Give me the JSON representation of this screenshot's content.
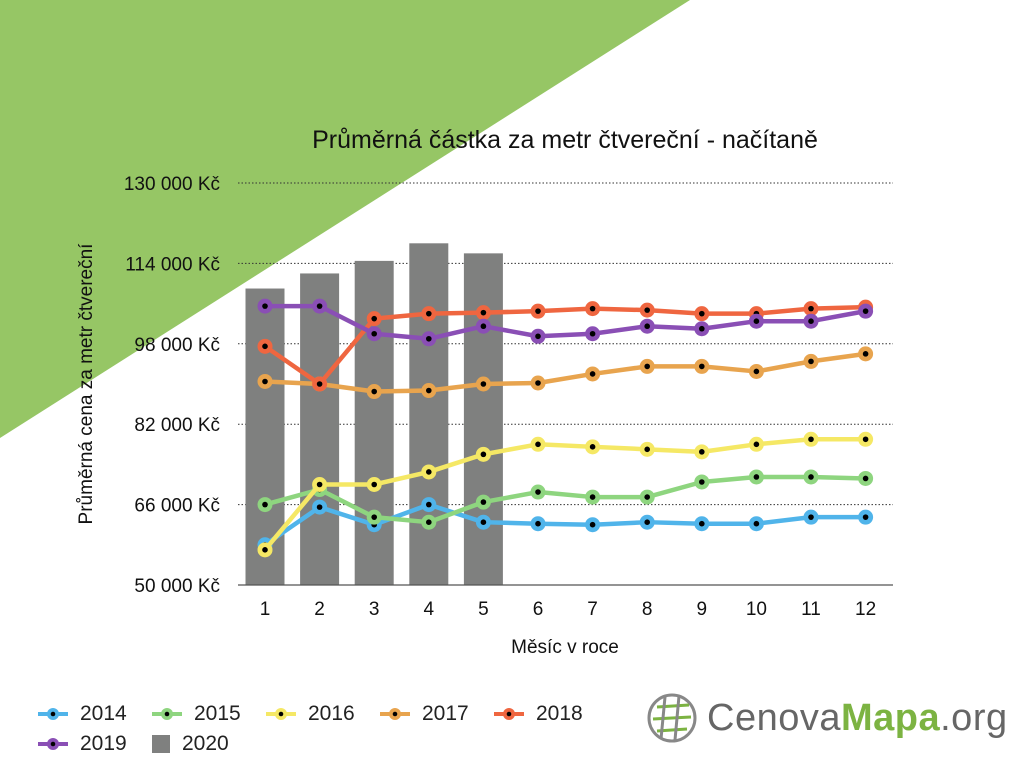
{
  "chart_data": {
    "type": "line",
    "title": "Průměrná částka za metr čtvereční - načítaně",
    "xlabel": "Měsíc v roce",
    "ylabel": "Průměrná cena za metr čtvereční",
    "x": [
      1,
      2,
      3,
      4,
      5,
      6,
      7,
      8,
      9,
      10,
      11,
      12
    ],
    "x_tick_labels": [
      "1",
      "2",
      "3",
      "4",
      "5",
      "6",
      "7",
      "8",
      "9",
      "10",
      "11",
      "12"
    ],
    "ylim": [
      50000,
      130000
    ],
    "y_tick_labels": [
      "130 000 Kč",
      "114 000 Kč",
      "98 000 Kč",
      "82 000 Kč",
      "66 000 Kč",
      "50 000 Kč"
    ],
    "grid": "horizontal dotted",
    "legend_position": "bottom",
    "bars": {
      "name": "2020",
      "color": "#7f807f",
      "values": [
        109000,
        112000,
        114500,
        118000,
        116000
      ]
    },
    "series": [
      {
        "name": "2014",
        "color": "#50b4ea",
        "values": [
          58000,
          65500,
          62000,
          66000,
          62500,
          62200,
          62000,
          62500,
          62200,
          62200,
          63500,
          63500
        ]
      },
      {
        "name": "2015",
        "color": "#8ed57f",
        "values": [
          66000,
          69000,
          63500,
          62500,
          66500,
          68500,
          67500,
          67500,
          70500,
          71500,
          71500,
          71200
        ]
      },
      {
        "name": "2016",
        "color": "#f5e865",
        "values": [
          57000,
          70000,
          70000,
          72500,
          76000,
          78000,
          77500,
          77000,
          76500,
          78000,
          79000,
          79000
        ]
      },
      {
        "name": "2017",
        "color": "#e8a44e",
        "values": [
          90500,
          90000,
          88500,
          88700,
          90000,
          90200,
          92000,
          93500,
          93500,
          92500,
          94500,
          96000
        ]
      },
      {
        "name": "2018",
        "color": "#ef6640",
        "values": [
          97500,
          90000,
          103000,
          104000,
          104200,
          104500,
          105000,
          104700,
          104000,
          104000,
          105000,
          105300
        ]
      },
      {
        "name": "2019",
        "color": "#8a4fb5",
        "values": [
          105500,
          105500,
          100000,
          99000,
          101500,
          99500,
          100000,
          101500,
          101000,
          102500,
          102500,
          104500
        ]
      }
    ]
  },
  "legend": [
    {
      "label": "2014",
      "color": "#50b4ea",
      "kind": "line"
    },
    {
      "label": "2015",
      "color": "#8ed57f",
      "kind": "line"
    },
    {
      "label": "2016",
      "color": "#f5e865",
      "kind": "line"
    },
    {
      "label": "2017",
      "color": "#e8a44e",
      "kind": "line"
    },
    {
      "label": "2018",
      "color": "#ef6640",
      "kind": "line"
    },
    {
      "label": "2019",
      "color": "#8a4fb5",
      "kind": "line"
    },
    {
      "label": "2020",
      "color": "#7f807f",
      "kind": "bar"
    }
  ],
  "logo": {
    "part1": "Cenova",
    "part2": "Mapa",
    "part3": ".org",
    "icon": "globe-icon"
  },
  "colors": {
    "background_accent": "#96c665"
  }
}
